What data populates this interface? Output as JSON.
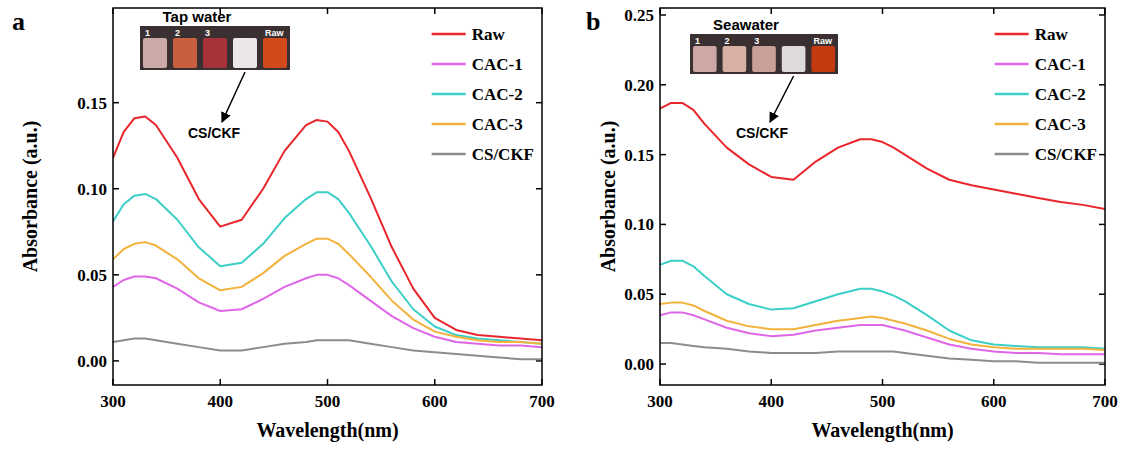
{
  "chart_data": [
    {
      "type": "line",
      "panel_label": "a",
      "x_label": "Wavelength(nm)",
      "y_label": "Absorbance (a.u.)",
      "inset": {
        "title": "Tap water",
        "vial_labels": [
          "1",
          "2",
          "3",
          "Raw"
        ],
        "arrow_label": "CS/CKF"
      },
      "x": [
        300,
        310,
        320,
        330,
        340,
        360,
        380,
        400,
        420,
        440,
        460,
        480,
        490,
        500,
        510,
        520,
        540,
        560,
        580,
        600,
        620,
        640,
        660,
        680,
        700
      ],
      "series": [
        {
          "name": "Raw",
          "color": "#e8262b",
          "values": [
            0.118,
            0.133,
            0.141,
            0.142,
            0.137,
            0.118,
            0.094,
            0.078,
            0.082,
            0.1,
            0.122,
            0.137,
            0.14,
            0.139,
            0.133,
            0.122,
            0.095,
            0.066,
            0.042,
            0.025,
            0.018,
            0.015,
            0.014,
            0.013,
            0.012
          ]
        },
        {
          "name": "CAC-1",
          "color": "#e066e8",
          "values": [
            0.043,
            0.047,
            0.049,
            0.049,
            0.048,
            0.042,
            0.034,
            0.029,
            0.03,
            0.036,
            0.043,
            0.048,
            0.05,
            0.05,
            0.048,
            0.044,
            0.035,
            0.026,
            0.019,
            0.014,
            0.011,
            0.01,
            0.009,
            0.009,
            0.008
          ]
        },
        {
          "name": "CAC-2",
          "color": "#3ccfc7",
          "values": [
            0.081,
            0.091,
            0.096,
            0.097,
            0.094,
            0.082,
            0.066,
            0.055,
            0.057,
            0.068,
            0.083,
            0.094,
            0.098,
            0.098,
            0.094,
            0.086,
            0.067,
            0.046,
            0.03,
            0.02,
            0.015,
            0.013,
            0.012,
            0.011,
            0.01
          ]
        },
        {
          "name": "CAC-3",
          "color": "#f2b23c",
          "values": [
            0.059,
            0.065,
            0.068,
            0.069,
            0.067,
            0.059,
            0.048,
            0.041,
            0.043,
            0.051,
            0.061,
            0.068,
            0.071,
            0.071,
            0.068,
            0.062,
            0.049,
            0.035,
            0.024,
            0.017,
            0.014,
            0.012,
            0.011,
            0.011,
            0.01
          ]
        },
        {
          "name": "CS/CKF",
          "color": "#8c8c8c",
          "values": [
            0.011,
            0.012,
            0.013,
            0.013,
            0.012,
            0.01,
            0.008,
            0.006,
            0.006,
            0.008,
            0.01,
            0.011,
            0.012,
            0.012,
            0.012,
            0.012,
            0.01,
            0.008,
            0.006,
            0.005,
            0.004,
            0.003,
            0.002,
            0.001,
            0.001
          ]
        }
      ],
      "xlim": [
        300,
        700
      ],
      "xticks": [
        300,
        400,
        500,
        600,
        700
      ],
      "ylim": [
        -0.014,
        0.205
      ],
      "yticks": [
        {
          "value": 0,
          "label": "0.00"
        },
        0.05,
        {
          "value": 0.1,
          "label": "0.10"
        },
        0.15
      ],
      "legend": "upper right"
    },
    {
      "type": "line",
      "panel_label": "b",
      "x_label": "Wavelength(nm)",
      "y_label": "Absorbance (a.u.)",
      "inset": {
        "title": "Seawater",
        "vial_labels": [
          "1",
          "2",
          "3",
          "Raw"
        ],
        "arrow_label": "CS/CKF"
      },
      "x": [
        300,
        310,
        320,
        330,
        340,
        360,
        380,
        400,
        420,
        440,
        460,
        480,
        490,
        500,
        510,
        520,
        540,
        560,
        580,
        600,
        620,
        640,
        660,
        680,
        700
      ],
      "series": [
        {
          "name": "Raw",
          "color": "#e8262b",
          "values": [
            0.183,
            0.187,
            0.187,
            0.182,
            0.172,
            0.155,
            0.143,
            0.134,
            0.132,
            0.145,
            0.155,
            0.161,
            0.161,
            0.159,
            0.155,
            0.15,
            0.14,
            0.132,
            0.128,
            0.125,
            0.122,
            0.119,
            0.116,
            0.114,
            0.111
          ]
        },
        {
          "name": "CAC-1",
          "color": "#e066e8",
          "values": [
            0.035,
            0.037,
            0.037,
            0.035,
            0.032,
            0.026,
            0.022,
            0.02,
            0.021,
            0.024,
            0.026,
            0.028,
            0.028,
            0.028,
            0.026,
            0.024,
            0.019,
            0.014,
            0.011,
            0.009,
            0.008,
            0.008,
            0.007,
            0.007,
            0.007
          ]
        },
        {
          "name": "CAC-2",
          "color": "#3ccfc7",
          "values": [
            0.071,
            0.074,
            0.074,
            0.07,
            0.063,
            0.05,
            0.043,
            0.039,
            0.04,
            0.045,
            0.05,
            0.054,
            0.054,
            0.052,
            0.049,
            0.045,
            0.035,
            0.024,
            0.017,
            0.014,
            0.013,
            0.012,
            0.012,
            0.012,
            0.011
          ]
        },
        {
          "name": "CAC-3",
          "color": "#f2b23c",
          "values": [
            0.043,
            0.044,
            0.044,
            0.042,
            0.038,
            0.031,
            0.027,
            0.025,
            0.025,
            0.028,
            0.031,
            0.033,
            0.034,
            0.033,
            0.031,
            0.029,
            0.024,
            0.018,
            0.014,
            0.012,
            0.011,
            0.011,
            0.011,
            0.011,
            0.01
          ]
        },
        {
          "name": "CS/CKF",
          "color": "#8c8c8c",
          "values": [
            0.015,
            0.015,
            0.014,
            0.013,
            0.012,
            0.011,
            0.009,
            0.008,
            0.008,
            0.008,
            0.009,
            0.009,
            0.009,
            0.009,
            0.009,
            0.008,
            0.006,
            0.004,
            0.003,
            0.002,
            0.002,
            0.001,
            0.001,
            0.001,
            0.001
          ]
        }
      ],
      "xlim": [
        300,
        700
      ],
      "xticks": [
        300,
        400,
        500,
        600,
        700
      ],
      "ylim": [
        -0.015,
        0.255
      ],
      "yticks": [
        {
          "value": 0,
          "label": "0.00"
        },
        0.05,
        {
          "value": 0.1,
          "label": "0.10"
        },
        0.15,
        {
          "value": 0.2,
          "label": "0.20"
        },
        0.25
      ],
      "legend": "upper right"
    }
  ]
}
